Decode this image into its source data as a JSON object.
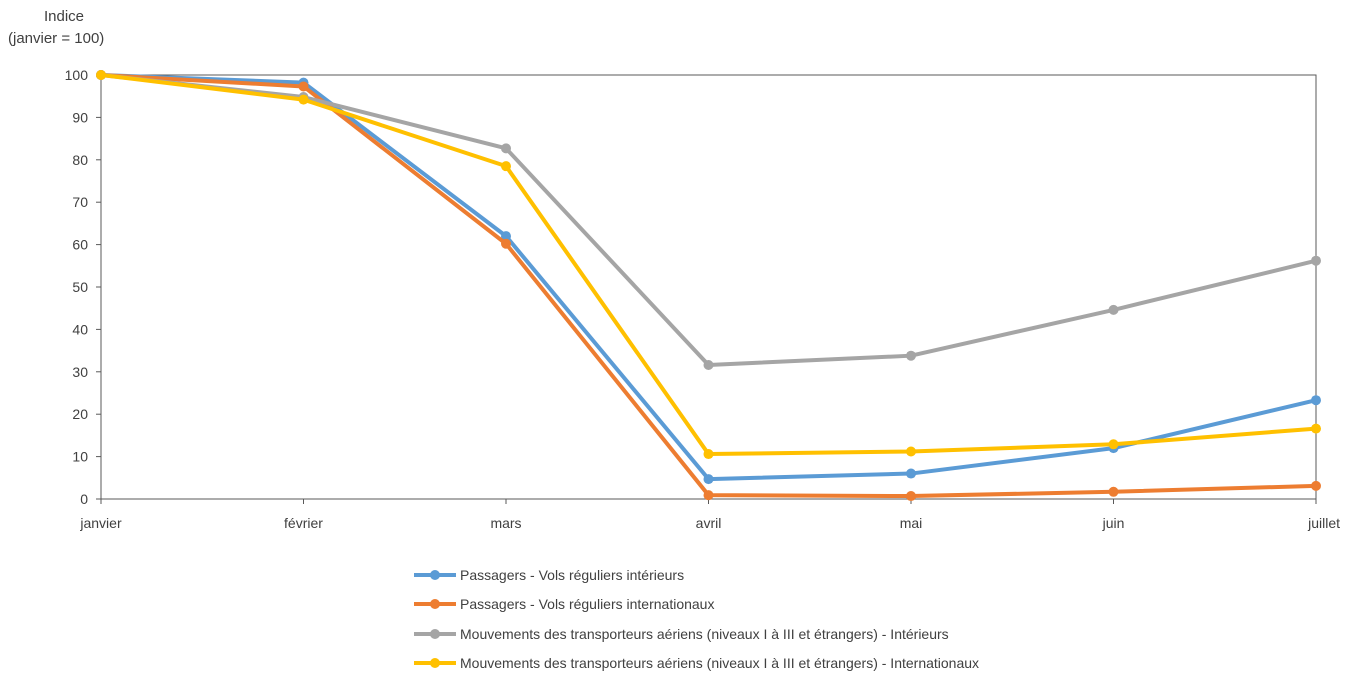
{
  "chart_data": {
    "type": "line",
    "ylabel_line1": "Indice",
    "ylabel_line2": "(janvier = 100)",
    "ylim": [
      0,
      100
    ],
    "yticks": [
      0,
      10,
      20,
      30,
      40,
      50,
      60,
      70,
      80,
      90,
      100
    ],
    "categories": [
      "janvier",
      "février",
      "mars",
      "avril",
      "mai",
      "juin",
      "juillet"
    ],
    "grid": false,
    "legend_position": "bottom",
    "series": [
      {
        "name": "Passagers - Vols réguliers intérieurs",
        "color": "#5B9BD5",
        "values": [
          100,
          98.2,
          62,
          4.7,
          6,
          12,
          23.3
        ]
      },
      {
        "name": "Passagers - Vols réguliers internationaux",
        "color": "#ED7D31",
        "values": [
          100,
          97.3,
          60.2,
          0.9,
          0.7,
          1.7,
          3.1
        ]
      },
      {
        "name": "Mouvements des transporteurs aériens (niveaux I à III et étrangers) - Intérieurs",
        "color": "#A5A5A5",
        "values": [
          100,
          94.8,
          82.7,
          31.6,
          33.8,
          44.6,
          56.2
        ]
      },
      {
        "name": "Mouvements des transporteurs aériens (niveaux I à III et étrangers) - Internationaux",
        "color": "#FFC000",
        "values": [
          100,
          94.2,
          78.5,
          10.6,
          11.2,
          12.9,
          16.6
        ]
      }
    ]
  }
}
